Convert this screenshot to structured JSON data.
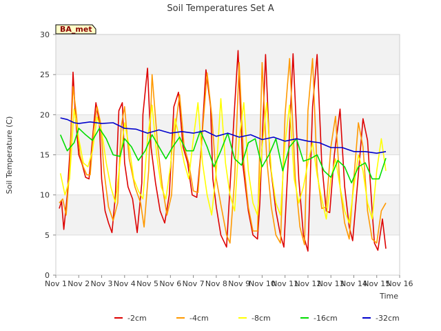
{
  "chart_data": {
    "type": "line",
    "title": "Soil Temperatures Set A",
    "xlabel": "Time",
    "ylabel": "Soil Temperature (C)",
    "badge": "BA_met",
    "xlim": [
      1,
      16
    ],
    "ylim": [
      0,
      30
    ],
    "x_ticks": [
      1,
      2,
      3,
      4,
      5,
      6,
      7,
      8,
      9,
      10,
      11,
      12,
      13,
      14,
      15,
      16
    ],
    "x_tick_labels": [
      "Nov 1",
      "Nov 2",
      "Nov 3",
      "Nov 4",
      "Nov 5",
      "Nov 6",
      "Nov 7",
      "Nov 8",
      "Nov 9",
      "Nov 10",
      "Nov 11",
      "Nov 12",
      "Nov 13",
      "Nov 14",
      "Nov 15",
      "Nov 16"
    ],
    "y_ticks": [
      0,
      5,
      10,
      15,
      20,
      25,
      30
    ],
    "y_tick_labels": [
      "0",
      "5",
      "10",
      "15",
      "20",
      "25",
      "30"
    ],
    "grid": true,
    "background_bands": true,
    "legend_position": "bottom",
    "series": [
      {
        "name": "-2cm",
        "color": "#dd0000",
        "x": [
          1.15,
          1.25,
          1.35,
          1.5,
          1.65,
          1.75,
          1.85,
          2.0,
          2.15,
          2.3,
          2.45,
          2.6,
          2.75,
          2.9,
          3.0,
          3.15,
          3.3,
          3.45,
          3.6,
          3.75,
          3.9,
          4.0,
          4.15,
          4.35,
          4.55,
          4.75,
          4.8,
          5.0,
          5.15,
          5.35,
          5.55,
          5.75,
          5.95,
          6.15,
          6.35,
          6.55,
          6.75,
          6.95,
          7.15,
          7.35,
          7.55,
          7.75,
          7.85,
          8.0,
          8.2,
          8.45,
          8.6,
          8.8,
          8.95,
          9.15,
          9.4,
          9.6,
          9.8,
          9.9,
          10.15,
          10.35,
          10.6,
          10.8,
          10.95,
          11.15,
          11.35,
          11.6,
          11.8,
          12.0,
          12.2,
          12.4,
          12.6,
          12.8,
          12.95,
          13.15,
          13.4,
          13.6,
          13.8,
          13.95,
          14.15,
          14.4,
          14.6,
          14.8,
          14.9,
          15.05,
          15.25,
          15.4
        ],
        "y": [
          8.3,
          9.2,
          5.7,
          10.0,
          17.0,
          25.3,
          20.0,
          15.0,
          13.8,
          12.2,
          12.0,
          17.0,
          21.5,
          19.0,
          12.0,
          8.0,
          6.5,
          5.3,
          10.0,
          20.5,
          21.5,
          14.0,
          11.0,
          9.5,
          5.3,
          11.5,
          20.0,
          25.8,
          16.0,
          11.5,
          8.0,
          6.5,
          10.0,
          21.0,
          22.8,
          16.0,
          14.0,
          10.0,
          9.7,
          16.0,
          25.6,
          21.0,
          12.0,
          8.5,
          5.0,
          3.5,
          11.0,
          21.0,
          28.0,
          14.0,
          8.0,
          5.0,
          4.5,
          9.0,
          27.5,
          14.0,
          8.0,
          5.0,
          3.5,
          15.0,
          27.6,
          12.0,
          5.0,
          3.0,
          21.0,
          27.5,
          14.0,
          8.0,
          7.8,
          15.0,
          20.7,
          11.0,
          6.0,
          4.3,
          11.0,
          19.5,
          16.8,
          8.0,
          4.0,
          3.1,
          7.0,
          3.3
        ]
      },
      {
        "name": "-4cm",
        "color": "#ff9900",
        "x": [
          1.15,
          1.3,
          1.45,
          1.6,
          1.75,
          1.9,
          2.05,
          2.2,
          2.35,
          2.5,
          2.65,
          2.8,
          2.95,
          3.1,
          3.3,
          3.5,
          3.7,
          3.85,
          4.0,
          4.2,
          4.45,
          4.7,
          4.85,
          5.05,
          5.2,
          5.45,
          5.65,
          5.85,
          6.05,
          6.2,
          6.4,
          6.6,
          6.8,
          7.0,
          7.2,
          7.4,
          7.6,
          7.8,
          8.0,
          8.2,
          8.45,
          8.6,
          8.8,
          9.0,
          9.2,
          9.4,
          9.6,
          9.8,
          10.0,
          10.2,
          10.4,
          10.6,
          10.8,
          11.0,
          11.2,
          11.45,
          11.65,
          11.85,
          12.0,
          12.2,
          12.4,
          12.6,
          12.8,
          13.0,
          13.2,
          13.4,
          13.6,
          13.8,
          14.0,
          14.2,
          14.4,
          14.6,
          14.8,
          15.0,
          15.2,
          15.4
        ],
        "y": [
          9.0,
          9.5,
          7.5,
          13.0,
          23.5,
          20.0,
          15.0,
          13.5,
          12.5,
          12.5,
          18.0,
          21.0,
          19.0,
          13.0,
          8.5,
          6.8,
          9.0,
          18.5,
          21.0,
          14.5,
          11.0,
          9.0,
          6.0,
          13.0,
          25.0,
          16.0,
          11.0,
          7.5,
          10.0,
          18.0,
          22.5,
          16.0,
          14.0,
          10.5,
          10.3,
          18.0,
          25.2,
          20.0,
          12.0,
          8.8,
          5.0,
          4.0,
          12.0,
          26.5,
          14.0,
          8.5,
          5.5,
          5.5,
          26.5,
          14.5,
          8.5,
          5.0,
          4.0,
          20.0,
          27.0,
          12.0,
          6.0,
          3.8,
          20.5,
          27.0,
          13.0,
          8.3,
          8.5,
          16.0,
          19.8,
          11.0,
          6.5,
          4.5,
          12.0,
          19.0,
          16.0,
          8.0,
          4.5,
          4.0,
          8.0,
          9.0
        ]
      },
      {
        "name": "-8cm",
        "color": "#ffff00",
        "x": [
          1.2,
          1.4,
          1.6,
          1.8,
          2.0,
          2.2,
          2.4,
          2.6,
          2.8,
          3.0,
          3.2,
          3.4,
          3.6,
          3.8,
          4.0,
          4.2,
          4.4,
          4.6,
          4.8,
          5.0,
          5.2,
          5.4,
          5.6,
          5.8,
          6.0,
          6.2,
          6.4,
          6.6,
          6.8,
          7.0,
          7.2,
          7.4,
          7.6,
          7.8,
          8.0,
          8.2,
          8.4,
          8.6,
          8.8,
          9.0,
          9.2,
          9.4,
          9.6,
          9.8,
          10.0,
          10.2,
          10.4,
          10.6,
          10.8,
          11.0,
          11.2,
          11.4,
          11.6,
          11.8,
          12.0,
          12.2,
          12.4,
          12.6,
          12.8,
          13.0,
          13.2,
          13.4,
          13.6,
          13.8,
          14.0,
          14.2,
          14.4,
          14.6,
          14.8,
          15.0,
          15.2,
          15.4
        ],
        "y": [
          12.7,
          10.0,
          12.0,
          20.7,
          17.0,
          14.0,
          13.5,
          15.5,
          19.7,
          18.0,
          14.0,
          11.0,
          9.0,
          14.0,
          19.0,
          16.0,
          12.0,
          10.5,
          9.5,
          17.0,
          21.2,
          15.0,
          11.0,
          9.5,
          13.5,
          19.5,
          17.0,
          14.0,
          12.0,
          17.0,
          21.5,
          14.0,
          10.0,
          7.5,
          13.0,
          22.0,
          14.0,
          10.0,
          8.0,
          17.0,
          21.5,
          13.0,
          9.0,
          7.5,
          16.0,
          21.5,
          13.0,
          9.0,
          7.5,
          16.5,
          21.2,
          12.0,
          9.0,
          11.0,
          14.0,
          16.5,
          12.5,
          9.5,
          7.0,
          12.0,
          14.5,
          11.0,
          8.0,
          6.5,
          11.0,
          15.0,
          13.0,
          9.0,
          7.0,
          13.0,
          17.0,
          13.0
        ]
      },
      {
        "name": "-16cm",
        "color": "#00dd00",
        "x": [
          1.2,
          1.5,
          1.8,
          2.0,
          2.3,
          2.6,
          2.9,
          3.2,
          3.5,
          3.8,
          4.0,
          4.3,
          4.6,
          4.9,
          5.2,
          5.5,
          5.8,
          6.1,
          6.4,
          6.7,
          7.0,
          7.3,
          7.6,
          7.9,
          8.2,
          8.5,
          8.8,
          9.1,
          9.4,
          9.7,
          10.0,
          10.3,
          10.6,
          10.9,
          11.2,
          11.5,
          11.8,
          12.1,
          12.4,
          12.7,
          13.0,
          13.3,
          13.6,
          13.9,
          14.2,
          14.5,
          14.8,
          15.1,
          15.4
        ],
        "y": [
          17.5,
          15.5,
          16.5,
          18.3,
          17.5,
          16.8,
          18.3,
          17.0,
          15.0,
          14.8,
          17.0,
          16.0,
          14.3,
          15.5,
          17.5,
          16.0,
          14.5,
          16.0,
          17.2,
          15.5,
          15.5,
          18.0,
          16.0,
          13.5,
          15.5,
          17.7,
          14.5,
          13.7,
          16.5,
          17.0,
          13.5,
          15.0,
          17.0,
          13.0,
          16.0,
          17.0,
          14.2,
          14.5,
          15.0,
          13.0,
          12.2,
          14.3,
          13.5,
          11.5,
          13.5,
          14.0,
          12.0,
          12.0,
          14.6
        ]
      },
      {
        "name": "-32cm",
        "color": "#0000cc",
        "x": [
          1.2,
          1.5,
          1.8,
          2.0,
          2.5,
          3.0,
          3.5,
          4.0,
          4.5,
          5.0,
          5.5,
          6.0,
          6.5,
          7.0,
          7.5,
          8.0,
          8.5,
          9.0,
          9.5,
          10.0,
          10.5,
          11.0,
          11.5,
          12.0,
          12.5,
          13.0,
          13.5,
          14.0,
          14.5,
          15.0,
          15.4
        ],
        "y": [
          19.6,
          19.4,
          19.0,
          18.9,
          19.1,
          18.9,
          19.0,
          18.3,
          18.2,
          17.7,
          18.1,
          17.7,
          17.9,
          17.7,
          18.0,
          17.3,
          17.7,
          17.2,
          17.5,
          16.9,
          17.2,
          16.7,
          17.0,
          16.7,
          16.5,
          15.9,
          15.9,
          15.4,
          15.4,
          15.2,
          15.4
        ]
      }
    ]
  }
}
